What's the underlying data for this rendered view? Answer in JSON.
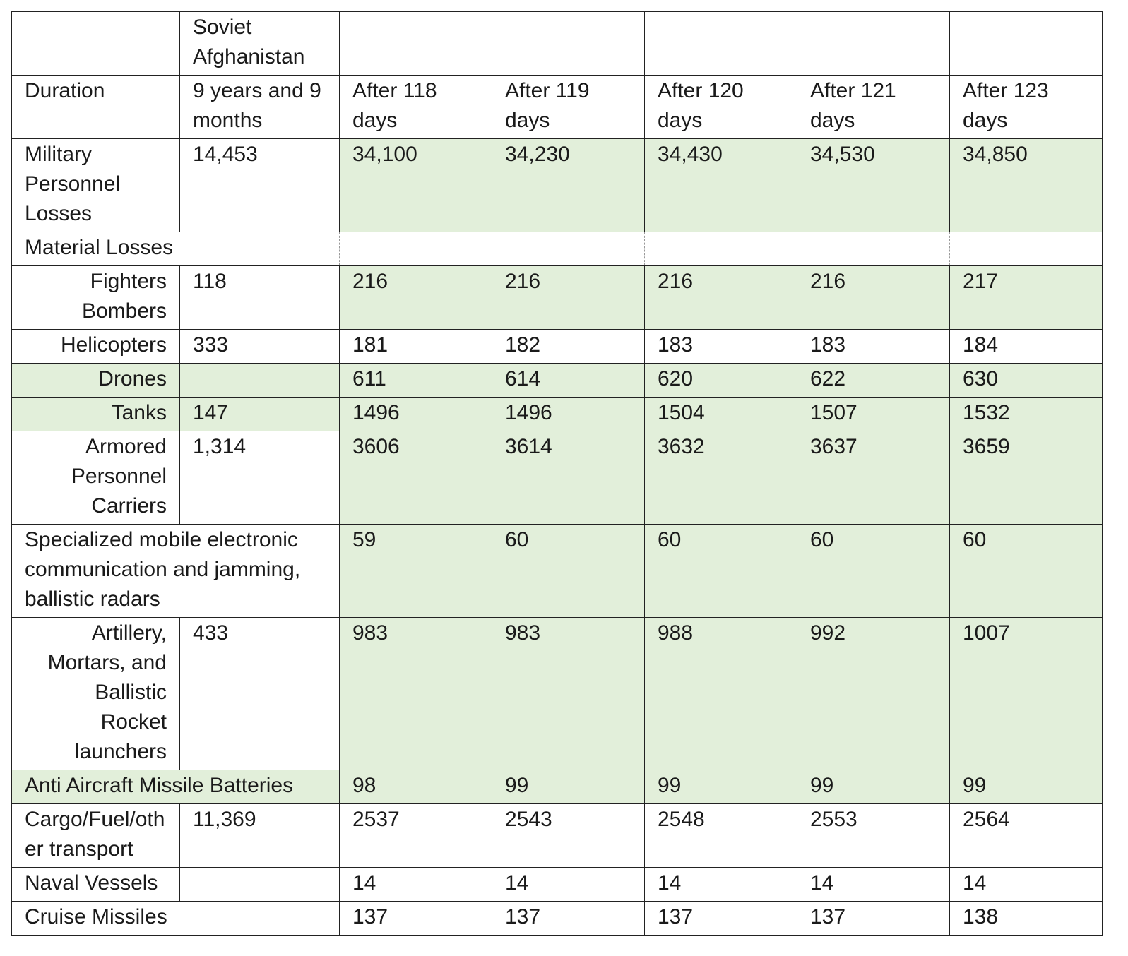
{
  "header": {
    "row1_col1": "Soviet Afghanistan",
    "duration_label": "Duration",
    "afghanistan_duration": "9 years and 9 months",
    "periods": [
      "After 118 days",
      "After 119 days",
      "After 120 days",
      "After 121 days",
      "After 123 days"
    ]
  },
  "rows": {
    "military_personnel": {
      "label": "Military Personnel Losses",
      "afghanistan": "14,453",
      "values": [
        "34,100",
        "34,230",
        "34,430",
        "34,530",
        "34,850"
      ]
    },
    "material_losses": {
      "label": "Material Losses"
    },
    "fighters_bombers": {
      "label": "Fighters Bombers",
      "afghanistan": "118",
      "values": [
        "216",
        "216",
        "216",
        "216",
        "217"
      ]
    },
    "helicopters": {
      "label": "Helicopters",
      "afghanistan": "333",
      "values": [
        "181",
        "182",
        "183",
        "183",
        "184"
      ]
    },
    "drones": {
      "label": "Drones",
      "afghanistan": "",
      "values": [
        "611",
        "614",
        "620",
        "622",
        "630"
      ]
    },
    "tanks": {
      "label": "Tanks",
      "afghanistan": "147",
      "values": [
        "1496",
        "1496",
        "1504",
        "1507",
        "1532"
      ]
    },
    "apc": {
      "label": "Armored Personnel Carriers",
      "afghanistan": "1,314",
      "values": [
        "3606",
        "3614",
        "3632",
        "3637",
        "3659"
      ]
    },
    "radars": {
      "label": "Specialized mobile electronic communication and jamming, ballistic radars",
      "values": [
        "59",
        "60",
        "60",
        "60",
        "60"
      ]
    },
    "artillery": {
      "label": "Artillery, Mortars, and Ballistic Rocket launchers",
      "afghanistan": "433",
      "values": [
        "983",
        "983",
        "988",
        "992",
        "1007"
      ]
    },
    "anti_aircraft": {
      "label": "Anti Aircraft Missile Batteries",
      "values": [
        "98",
        "99",
        "99",
        "99",
        "99"
      ]
    },
    "cargo": {
      "label": "Cargo/Fuel/other transport",
      "afghanistan": "11,369",
      "values": [
        "2537",
        "2543",
        "2548",
        "2553",
        "2564"
      ]
    },
    "naval": {
      "label": "Naval Vessels",
      "afghanistan": "",
      "values": [
        "14",
        "14",
        "14",
        "14",
        "14"
      ]
    },
    "cruise_missiles": {
      "label": "Cruise Missiles",
      "values": [
        "137",
        "137",
        "137",
        "137",
        "138"
      ]
    }
  }
}
